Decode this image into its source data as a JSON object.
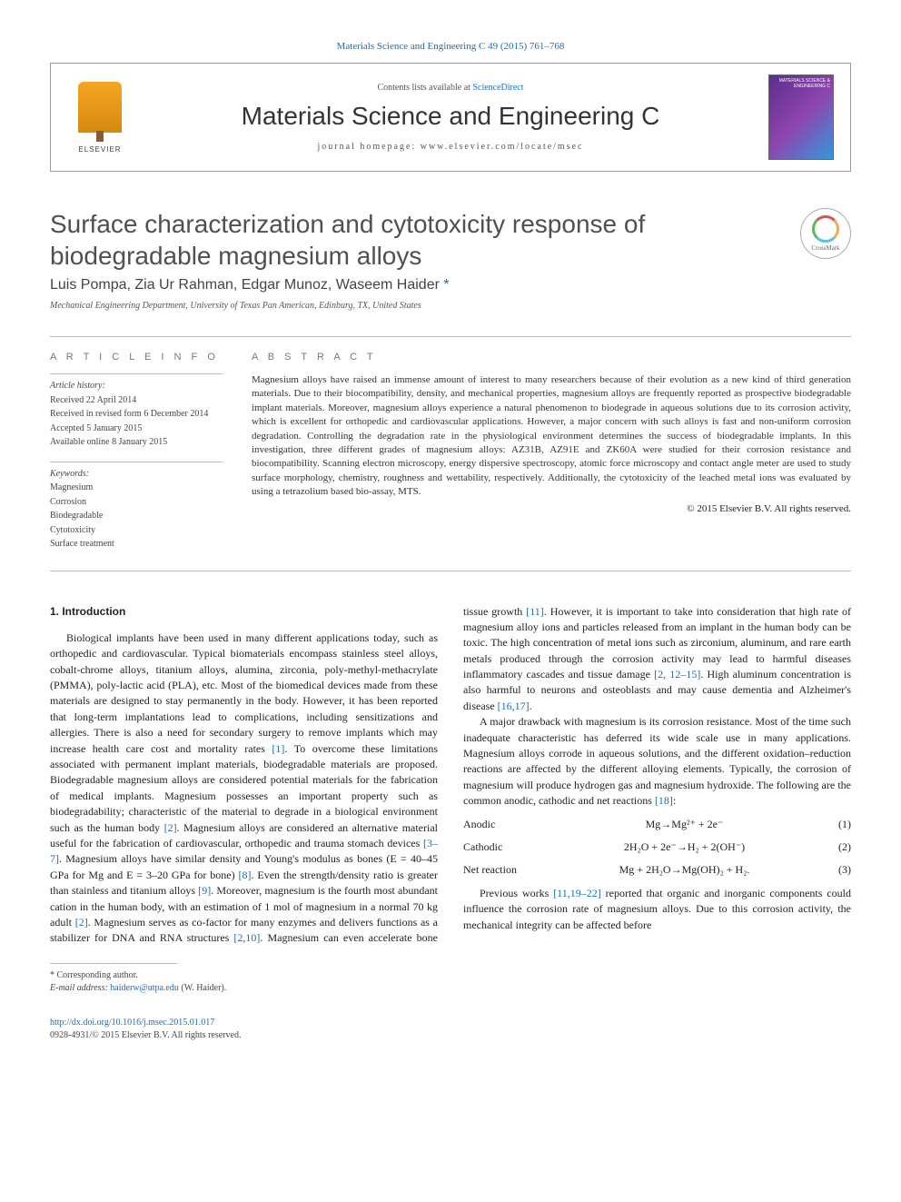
{
  "citation": "Materials Science and Engineering C 49 (2015) 761–768",
  "header": {
    "contents_prefix": "Contents lists available at ",
    "contents_link": "ScienceDirect",
    "journal": "Materials Science and Engineering C",
    "homepage_label": "journal homepage: ",
    "homepage_url": "www.elsevier.com/locate/msec",
    "elsevier": "ELSEVIER",
    "cover_text": "MATERIALS SCIENCE & ENGINEERING C"
  },
  "crossmark": "CrossMark",
  "title": "Surface characterization and cytotoxicity response of biodegradable magnesium alloys",
  "authors": "Luis Pompa, Zia Ur Rahman, Edgar Munoz, Waseem Haider ",
  "corr_mark": "*",
  "affiliation": "Mechanical Engineering Department, University of Texas Pan American, Edinburg, TX, United States",
  "info": {
    "heading": "A R T I C L E   I N F O",
    "history_label": "Article history:",
    "received": "Received 22 April 2014",
    "revised": "Received in revised form 6 December 2014",
    "accepted": "Accepted 5 January 2015",
    "online": "Available online 8 January 2015",
    "kw_label": "Keywords:",
    "k1": "Magnesium",
    "k2": "Corrosion",
    "k3": "Biodegradable",
    "k4": "Cytotoxicity",
    "k5": "Surface treatment"
  },
  "abstract": {
    "heading": "A B S T R A C T",
    "text": "Magnesium alloys have raised an immense amount of interest to many researchers because of their evolution as a new kind of third generation materials. Due to their biocompatibility, density, and mechanical properties, magnesium alloys are frequently reported as prospective biodegradable implant materials. Moreover, magnesium alloys experience a natural phenomenon to biodegrade in aqueous solutions due to its corrosion activity, which is excellent for orthopedic and cardiovascular applications. However, a major concern with such alloys is fast and non-uniform corrosion degradation. Controlling the degradation rate in the physiological environment determines the success of biodegradable implants. In this investigation, three different grades of magnesium alloys: AZ31B, AZ91E and ZK60A were studied for their corrosion resistance and biocompatibility. Scanning electron microscopy, energy dispersive spectroscopy, atomic force microscopy and contact angle meter are used to study surface morphology, chemistry, roughness and wettability, respectively. Additionally, the cytotoxicity of the leached metal ions was evaluated by using a tetrazolium based bio-assay, MTS.",
    "copyright": "© 2015 Elsevier B.V. All rights reserved."
  },
  "section1": "1. Introduction",
  "p1a": "Biological implants have been used in many different applications today, such as orthopedic and cardiovascular. Typical biomaterials encompass stainless steel alloys, cobalt-chrome alloys, titanium alloys, alumina, zirconia, poly-methyl-methacrylate (PMMA), poly-lactic acid (PLA), etc. Most of the biomedical devices made from these materials are designed to stay permanently in the body. However, it has been reported that long-term implantations lead to complications, including sensitizations and allergies. There is also a need for secondary surgery to remove implants which may increase health care cost and mortality rates ",
  "r1": "[1]",
  "p1b": ". To overcome these limitations associated with permanent implant materials, biodegradable materials are proposed. Biodegradable magnesium alloys are considered potential materials for the fabrication of medical implants. Magnesium possesses an important property such as biodegradability; characteristic of the material to degrade in a biological environment such as the human body ",
  "r2": "[2]",
  "p1c": ". Magnesium alloys are considered an alternative material useful for the fabrication of cardiovascular, orthopedic and trauma stomach devices ",
  "r3": "[3–7]",
  "p1d": ". Magnesium alloys have similar density and Young's modulus as bones (E = 40–45 GPa for Mg and E = 3–20 GPa for bone) ",
  "r4": "[8]",
  "p1e": ". Even the strength/density ratio is greater than stainless and titanium alloys ",
  "r5": "[9]",
  "p1f": ". Moreover, magnesium is the fourth most abundant cation in the human body, with an estimation of 1 mol of magnesium in a normal 70 kg adult ",
  "r6": "[2]",
  "p1g": ". Magnesium serves as co-factor for many enzymes and delivers functions as a stabilizer for DNA and RNA structures ",
  "r7": "[2,10]",
  "p1h": ". Magnesium can even accelerate bone tissue growth ",
  "r8": "[11]",
  "p1i": ". However, it is important to take into consideration that high rate of magnesium alloy ions and particles released from an implant in the human body can be toxic. The high concentration of metal ions such as zirconium, aluminum, and rare earth metals produced through the corrosion activity may lead to harmful diseases inflammatory cascades and tissue damage ",
  "r9": "[2, 12–15]",
  "p1j": ". High aluminum concentration is also harmful to neurons and osteoblasts and may cause dementia and Alzheimer's disease ",
  "r10": "[16,17]",
  "p1k": ".",
  "p2a": "A major drawback with magnesium is its corrosion resistance. Most of the time such inadequate characteristic has deferred its wide scale use in many applications. Magnesium alloys corrode in aqueous solutions, and the different oxidation–reduction reactions are affected by the different alloying elements. Typically, the corrosion of magnesium will produce hydrogen gas and magnesium hydroxide. The following are the common anodic, cathodic and net reactions ",
  "r11": "[18]",
  "p2b": ":",
  "eq1": {
    "label": "Anodic",
    "formula": "Mg→Mg²⁺ + 2e⁻",
    "num": "(1)"
  },
  "eq2": {
    "label": "Cathodic",
    "formula": "2H₂O + 2e⁻→H₂ + 2(OH⁻)",
    "num": "(2)"
  },
  "eq3": {
    "label": "Net reaction",
    "formula": "Mg + 2H₂O→Mg(OH)₂ + H₂.",
    "num": "(3)"
  },
  "p3a": "Previous works ",
  "r12": "[11,19–22]",
  "p3b": " reported that organic and inorganic components could influence the corrosion rate of magnesium alloys. Due to this corrosion activity, the mechanical integrity can be affected before",
  "footnote": {
    "corr": "* Corresponding author.",
    "email_label": "E-mail address: ",
    "email": "haiderw@utpa.edu",
    "email_who": " (W. Haider)."
  },
  "bottom": {
    "doi": "http://dx.doi.org/10.1016/j.msec.2015.01.017",
    "issn": "0928-4931/© 2015 Elsevier B.V. All rights reserved."
  },
  "colors": {
    "link": "#1a6eb8",
    "text": "#222222",
    "muted": "#555555",
    "rule": "#bbbbbb"
  }
}
